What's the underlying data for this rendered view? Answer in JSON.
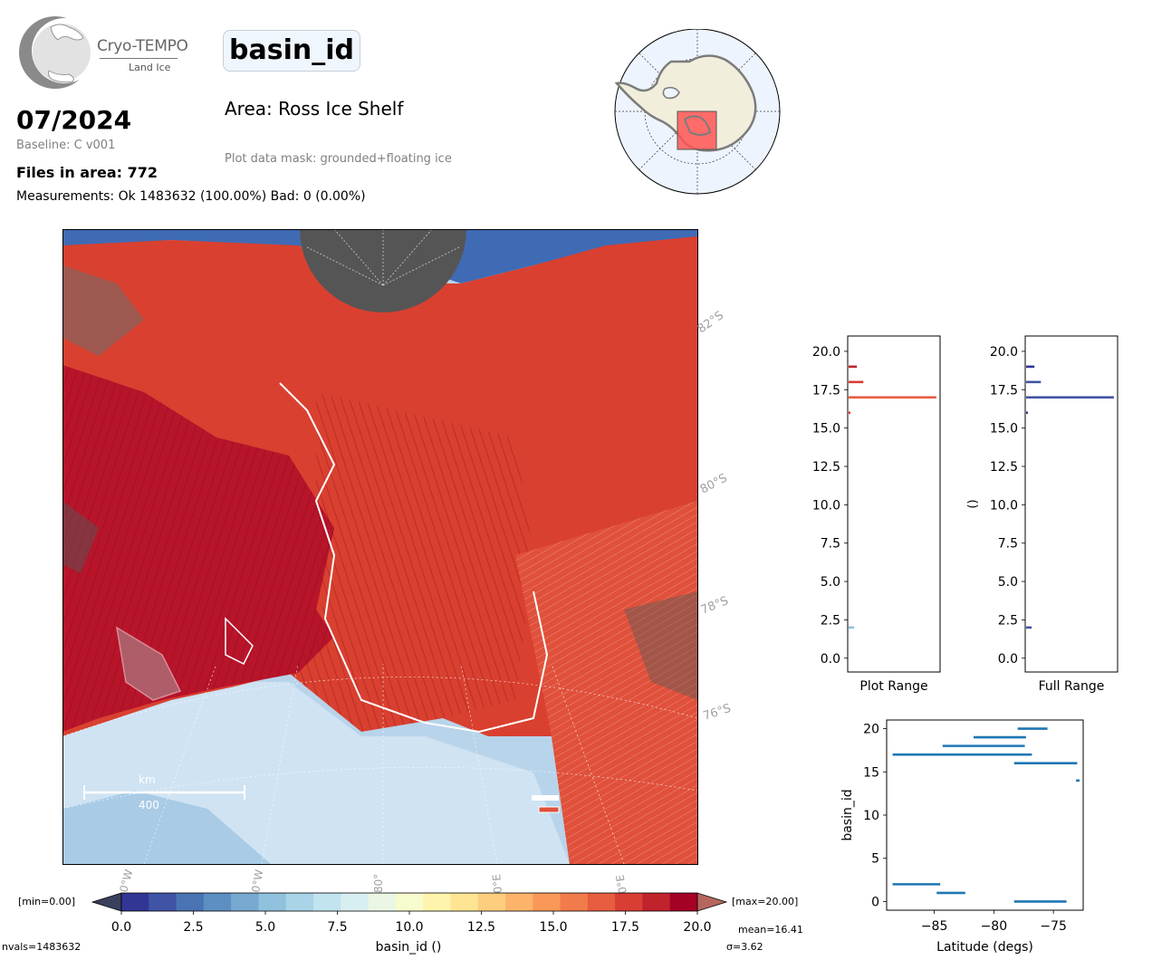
{
  "header": {
    "logo_title": "Cryo-TEMPO",
    "logo_subtitle": "Land Ice",
    "date": "07/2024",
    "baseline": "Baseline: C v001",
    "files": "Files in area: 772",
    "measurements": "Measurements: Ok 1483632 (100.00%) Bad: 0 (0.00%)",
    "variable": "basin_id",
    "area": "Area: Ross Ice Shelf",
    "mask": "Plot data mask: grounded+floating ice"
  },
  "map": {
    "lat_labels": [
      "82°S",
      "80°S",
      "78°S",
      "76°S"
    ],
    "lon_labels": [
      "0°W",
      "0°W",
      "80°",
      "0°E",
      "0°E"
    ],
    "scale_unit": "km",
    "scale_value": "400"
  },
  "colorbar": {
    "min_label": "[min=0.00]",
    "max_label": "[max=20.00]",
    "ticks": [
      "0.0",
      "2.5",
      "5.0",
      "7.5",
      "10.0",
      "12.5",
      "15.0",
      "17.5",
      "20.0"
    ],
    "label": "basin_id ()",
    "colors": [
      "#313695",
      "#3f54a4",
      "#4a73b3",
      "#5d8fc2",
      "#78a9d0",
      "#90c1dd",
      "#a9d4e7",
      "#c1e4ef",
      "#d8eff2",
      "#ebf7e4",
      "#f8fbcd",
      "#fff4ad",
      "#fee593",
      "#fdce7e",
      "#fcb46b",
      "#f99858",
      "#f27b4b",
      "#e75d3f",
      "#d83e33",
      "#c0232b",
      "#a50026"
    ],
    "under_color": "#3a3f5c",
    "over_color": "#b5675e"
  },
  "stats": {
    "mean": "mean=16.41",
    "sigma": "σ=3.62",
    "nvals": "nvals=1483632"
  },
  "chart_data": [
    {
      "type": "bar",
      "orientation": "horizontal",
      "xlabel": "Plot Range",
      "ylim": [
        -0.9,
        21.0
      ],
      "yticks": [
        "0.0",
        "2.5",
        "5.0",
        "7.5",
        "10.0",
        "12.5",
        "15.0",
        "17.5",
        "20.0"
      ],
      "series": [
        {
          "values": [
            {
              "y": 2.0,
              "x": 0.06,
              "color": "#90c1dd"
            },
            {
              "y": 16.0,
              "x": 0.02,
              "color": "#d83e33"
            },
            {
              "y": 17.0,
              "x": 0.95,
              "color": "#e75d3f"
            },
            {
              "y": 18.0,
              "x": 0.16,
              "color": "#d83e33"
            },
            {
              "y": 19.0,
              "x": 0.09,
              "color": "#c0232b"
            }
          ]
        }
      ]
    },
    {
      "type": "bar",
      "orientation": "horizontal",
      "xlabel": "Full Range",
      "ylabel": "()",
      "ylim": [
        -0.9,
        21.0
      ],
      "yticks": [
        "0.0",
        "2.5",
        "5.0",
        "7.5",
        "10.0",
        "12.5",
        "15.0",
        "17.5",
        "20.0"
      ],
      "series": [
        {
          "values": [
            {
              "y": 2.0,
              "x": 0.06,
              "color": "#3f54a4"
            },
            {
              "y": 16.0,
              "x": 0.02,
              "color": "#313695"
            },
            {
              "y": 17.0,
              "x": 0.95,
              "color": "#3f54a4"
            },
            {
              "y": 18.0,
              "x": 0.16,
              "color": "#3f54a4"
            },
            {
              "y": 19.0,
              "x": 0.09,
              "color": "#313695"
            }
          ]
        }
      ]
    },
    {
      "type": "scatter",
      "xlabel": "Latitude (degs)",
      "ylabel": "basin_id",
      "xlim": [
        -89,
        -72.5
      ],
      "ylim": [
        -1,
        21
      ],
      "xticks": [
        "−85",
        "−80",
        "−75"
      ],
      "yticks": [
        "0",
        "5",
        "10",
        "15",
        "20"
      ],
      "color": "#1f77b4",
      "segments": [
        {
          "y": 20,
          "x": [
            -78.0,
            -75.5
          ]
        },
        {
          "y": 19,
          "x": [
            -81.7,
            -77.3
          ]
        },
        {
          "y": 18,
          "x": [
            -84.3,
            -77.4
          ]
        },
        {
          "y": 17,
          "x": [
            -88.5,
            -76.8
          ]
        },
        {
          "y": 16,
          "x": [
            -78.3,
            -73.0
          ]
        },
        {
          "y": 14,
          "x": [
            -73.1,
            -72.8
          ]
        },
        {
          "y": 2,
          "x": [
            -88.5,
            -84.5
          ]
        },
        {
          "y": 1,
          "x": [
            -84.8,
            -82.4
          ]
        },
        {
          "y": 0,
          "x": [
            -78.3,
            -73.9
          ]
        }
      ]
    }
  ]
}
